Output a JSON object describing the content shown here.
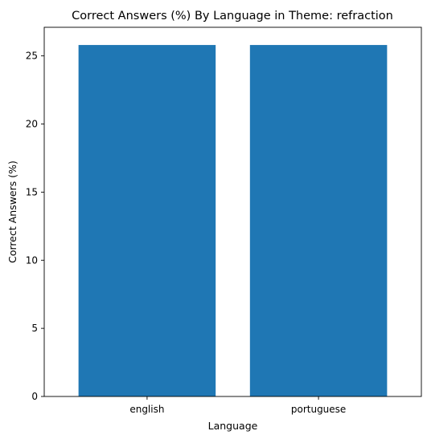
{
  "chart_data": {
    "type": "bar",
    "title": "Correct Answers (%) By Language in Theme: refraction",
    "xlabel": "Language",
    "ylabel": "Correct Answers (%)",
    "categories": [
      "english",
      "portuguese"
    ],
    "values": [
      25.8,
      25.8
    ],
    "ylim": [
      0,
      27.1
    ],
    "yticks": [
      0,
      5,
      10,
      15,
      20,
      25
    ],
    "bar_color": "#1f77b4",
    "grid": false,
    "legend": "none"
  }
}
